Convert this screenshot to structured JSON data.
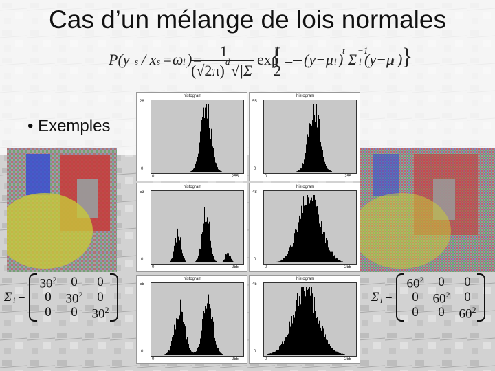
{
  "slide": {
    "title": "Cas d’un mélange de lois normales",
    "bullet": "• Exemples"
  },
  "formula": {
    "lhs": "P(y",
    "sub_s": "s",
    "cond": "/ x",
    "sub_s2": "s",
    "eq": "=ω",
    "sub_i": "i",
    "close": ")=",
    "numerator": "1",
    "denominator": "(√2π)",
    "exp_d": "d",
    "sqrt_sigma": "√|Σ",
    "exp_word": "exp",
    "half_num": "1",
    "half_den": "2",
    "quad": "(y−μ",
    "quad2": ")",
    "t": "t",
    "sigma_inv": "Σ",
    "inv": "−1",
    "quad3": "(y−μ",
    "quad4": ")"
  },
  "sigma_left": {
    "label": "Σ",
    "sub": "i",
    "eq": "=",
    "cells": [
      "30",
      "0",
      "0",
      "0",
      "30",
      "0",
      "0",
      "0",
      "30"
    ],
    "exps": [
      "2",
      "",
      "",
      "",
      "2",
      "",
      "",
      "",
      "2"
    ]
  },
  "sigma_right": {
    "label": "Σ",
    "sub": "i",
    "eq": "=",
    "cells": [
      "60",
      "0",
      "0",
      "0",
      "60",
      "0",
      "0",
      "0",
      "60"
    ],
    "exps": [
      "2",
      "",
      "",
      "",
      "2",
      "",
      "",
      "",
      "2"
    ]
  },
  "histograms": [
    {
      "title": "histogram",
      "ymax": "28",
      "xmin": "0",
      "xmax": "255",
      "shape": "single"
    },
    {
      "title": "histogram",
      "ymax": "55",
      "xmin": "0",
      "xmax": "255",
      "shape": "single-narrow"
    },
    {
      "title": "histogram",
      "ymax": "53",
      "xmin": "0",
      "xmax": "255",
      "shape": "triple"
    },
    {
      "title": "histogram",
      "ymax": "48",
      "xmin": "0",
      "xmax": "255",
      "shape": "broad"
    },
    {
      "title": "histogram",
      "ymax": "55",
      "xmin": "0",
      "xmax": "255",
      "shape": "double"
    },
    {
      "title": "histogram",
      "ymax": "45",
      "xmin": "0",
      "xmax": "255",
      "shape": "broad2"
    }
  ],
  "colors": {
    "blue": "#3a4fd0",
    "red": "#c83a3a",
    "yellow": "#c8c83a",
    "gray": "#9a9a9a"
  }
}
